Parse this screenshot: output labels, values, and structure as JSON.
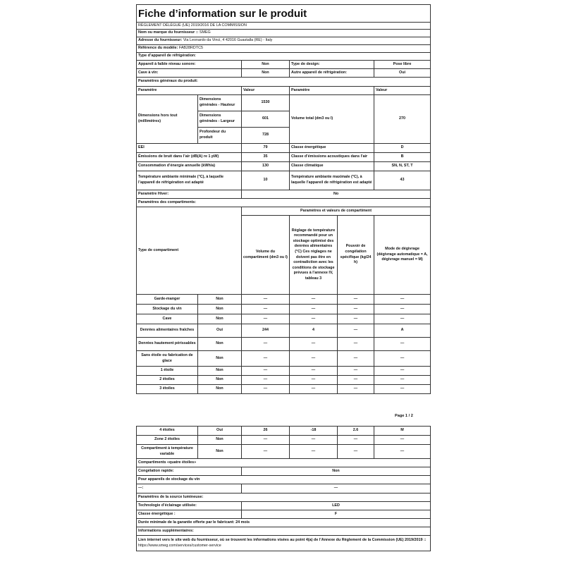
{
  "title": "Fiche d’information sur le produit",
  "regulation": "RÈGLEMENT DÉLÉGUÉ (UE) 2019/2016 DE LA COMMISSION",
  "supplier": {
    "label": "Nom ou marque du fournisseur ::",
    "value": "SMEG"
  },
  "address": {
    "label": "Adresse du fournisseur:",
    "value": "Via Leonardo da Vinci, 4 42016 Guastalla (RE) - Italy"
  },
  "model": {
    "label": "Référence du modèle:",
    "value": "FAB28RDTC5"
  },
  "appliance_type": {
    "heading": "Type d’appareil de réfrigération:",
    "low_noise_label": "Appareil à faible niveau sonore:",
    "low_noise": "Non",
    "design_label": "Type de design:",
    "design": "Pose libre",
    "wine_label": "Cave à vin:",
    "wine": "Non",
    "other_label": "Autre appareil de réfrigération:",
    "other": "Oui"
  },
  "general": {
    "heading": "Paramètres généraux du produit:",
    "col_param": "Paramètre",
    "col_value": "Valeur",
    "dimensions_label": "Dimensions hors tout (millimètres)",
    "height_label": "Dimensions générales - Hauteur",
    "height": "1530",
    "width_label": "Dimensions générales - Largeur",
    "width": "601",
    "depth_label": "Profondeur du produit",
    "depth": "728",
    "volume_label": "Volume total (dm3 ou l)",
    "volume": "270",
    "eei_label": "EEI",
    "eei": "79",
    "energy_class_label": "Classe énergétique",
    "energy_class": "D",
    "noise_label": "Émissions de bruit dans l’air (dB(A) re 1 pW)",
    "noise": "35",
    "noise_class_label": "Classe d’émissions acoustiques dans l’air",
    "noise_class": "B",
    "consumption_label": "Consommation d’énergie annuelle (kWh/a)",
    "consumption": "130",
    "climate_label": "Classe climatique",
    "climate": "SN, N, ST, T",
    "tmin_label": "Température ambiante minimale (°C), à laquelle l’appareil de réfrigération est adapté",
    "tmin": "10",
    "tmax_label": "Température ambiante maximale (°C), à laquelle l’appareil de réfrigération est adapté",
    "tmax": "43",
    "winter_label": "Paramètre Hiver:",
    "winter": "No"
  },
  "compartments": {
    "heading": "Paramètres des compartiments:",
    "type_header": "Type de compartiment",
    "group_header": "Paramètres et valeurs de compartiment",
    "col_volume": "Volume du compartiment (dm3 ou l)",
    "col_temp": "Réglage de température recommandé pour un stockage optimisé des denrées alimentaires (°C) Ces réglages ne doivent pas être en contradiction avec les conditions de stockage prévues à l’annexe IV, tableau 3",
    "col_freeze": "Pouvoir de congélation spécifique (kg/24 h)",
    "col_defrost": "Mode de dégivrage (dégivrage automatique = A, dégivrage manuel = M)",
    "rows_page1": [
      [
        "Garde-manger",
        "Non",
        "—",
        "—",
        "—",
        "—"
      ],
      [
        "Stockage du vin",
        "Non",
        "—",
        "—",
        "—",
        "—"
      ],
      [
        "Cave",
        "Non",
        "—",
        "—",
        "—",
        "—"
      ],
      [
        "Denrées alimentaires fraîches",
        "Oui",
        "244",
        "4",
        "—",
        "A"
      ],
      [
        "Denrées hautement périssables",
        "Non",
        "—",
        "—",
        "—",
        "—"
      ],
      [
        "Sans étoile ou fabrication de glace",
        "Non",
        "—",
        "—",
        "—",
        "—"
      ],
      [
        "1 étoile",
        "Non",
        "—",
        "—",
        "—",
        "—"
      ],
      [
        "2 étoiles",
        "Non",
        "—",
        "—",
        "—",
        "—"
      ],
      [
        "3 étoiles",
        "Non",
        "—",
        "—",
        "—",
        "—"
      ]
    ],
    "rows_page2": [
      [
        "4 étoiles",
        "Oui",
        "26",
        "-18",
        "2.6",
        "M"
      ],
      [
        "Zone 2 étoiles",
        "Non",
        "—",
        "—",
        "—",
        "—"
      ],
      [
        "Compartiment à température variable",
        "Non",
        "—",
        "—",
        "—",
        "—"
      ]
    ]
  },
  "page_number": "Page 1 / 2",
  "four_star": {
    "heading": "Compartiments «quatre étoiles»",
    "fast_freeze_label": "Congélation rapide:",
    "fast_freeze": "Non"
  },
  "wine_storage": {
    "heading": "Pour appareils de stockage du vin",
    "label": "—:",
    "value": "—"
  },
  "light": {
    "heading": "Paramètres de la source lumineuse:",
    "tech_label": "Technologie d’éclairage utilisée:",
    "tech": "LED",
    "class_label": "Classe énergétique :",
    "class": "F"
  },
  "warranty": "Durée minimale de la garantie offerte par le fabricant: 24 mois",
  "additional": {
    "heading": "Informations supplémentaires:",
    "link_text": "Lien internet vers le site web du fournisseur, où se trouvent les informations visées au point 4(a) de l’Annexe du Règlement de la Commission (UE) 2019/2019 ::",
    "url": "https://www.smeg.com/services/customer-service"
  }
}
